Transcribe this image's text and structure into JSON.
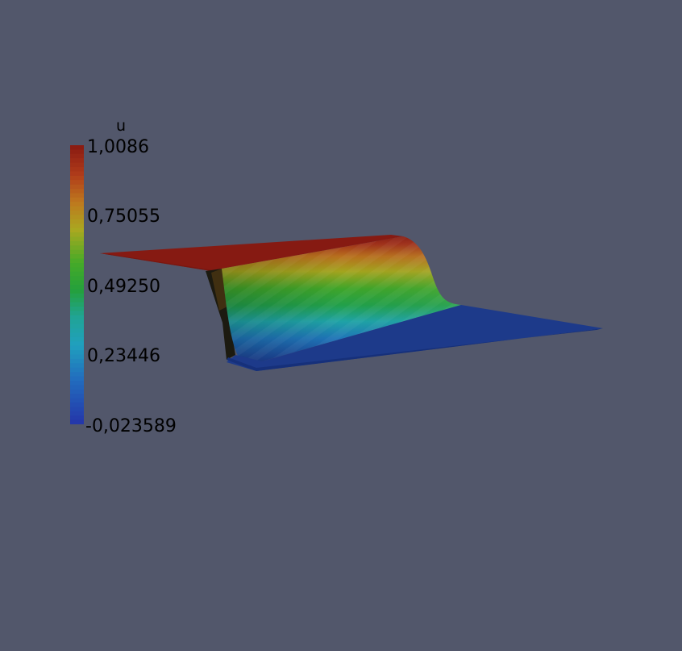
{
  "scalar_bar": {
    "title": "u",
    "labels": [
      "1,0086",
      "0,75055",
      "0,49250",
      "0,23446",
      "-0,023589"
    ],
    "range": [
      -0.023589,
      1.0086
    ],
    "colormap": "rainbow"
  },
  "render": {
    "background_color": "#52576b",
    "field": "u",
    "high_color": "#8b1a14",
    "low_color": "#1d3a8c"
  }
}
